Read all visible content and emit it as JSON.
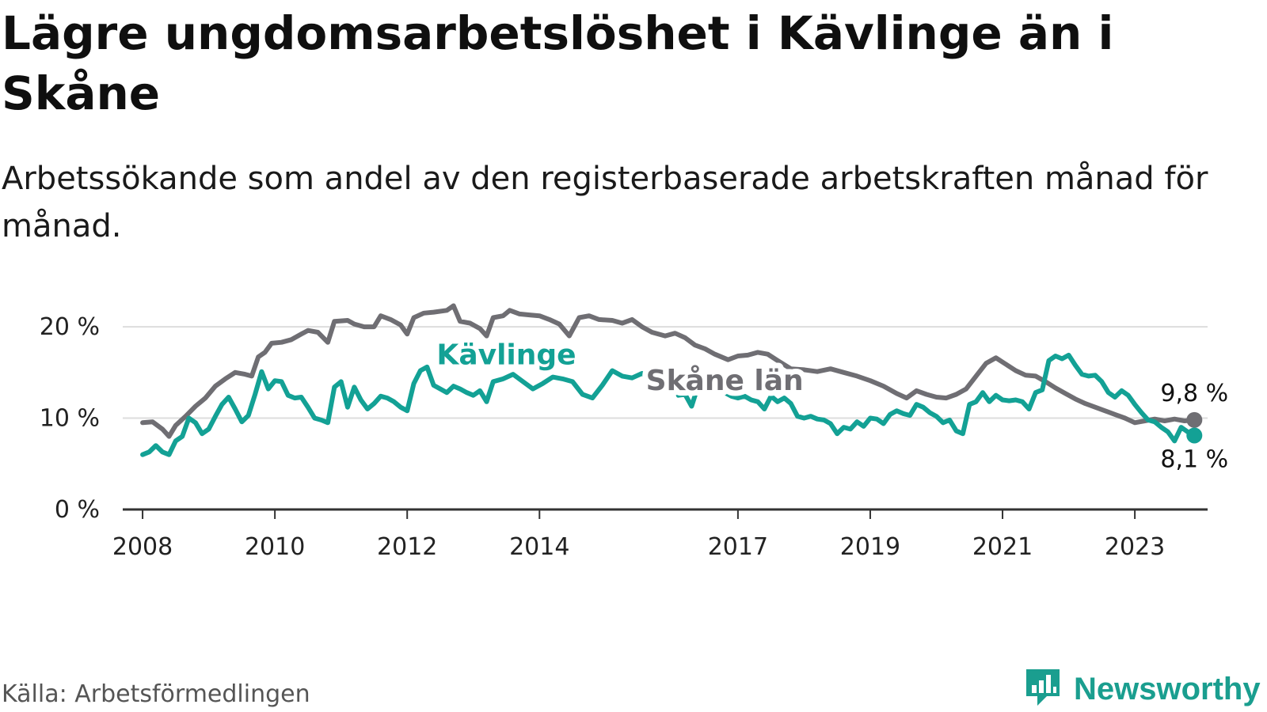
{
  "header": {
    "title": "Lägre ungdomsarbetslöshet i Kävlinge än i Skåne",
    "subtitle": "Arbetssökande som andel av den registerbaserade arbetskraften månad för månad."
  },
  "footer": {
    "source": "Källa: Arbetsförmedlingen",
    "brand": "Newsworthy"
  },
  "colors": {
    "kavlinge": "#13a195",
    "skane": "#6f6e73",
    "grid": "#dddddd",
    "axis": "#333333",
    "brand": "#1a9e8f"
  },
  "icons": {
    "brand_logo": "bar-chart-speech-bubble-icon"
  },
  "chart_data": {
    "type": "line",
    "title": "Lägre ungdomsarbetslöshet i Kävlinge än i Skåne",
    "xlabel": "",
    "ylabel": "",
    "ylim": [
      0,
      22
    ],
    "xlim": [
      2007.7,
      2024.1
    ],
    "yticks": [
      {
        "value": 0,
        "label": "0 %"
      },
      {
        "value": 10,
        "label": "10 %"
      },
      {
        "value": 20,
        "label": "20 %"
      }
    ],
    "xticks": [
      {
        "value": 2008,
        "label": "2008"
      },
      {
        "value": 2010,
        "label": "2010"
      },
      {
        "value": 2012,
        "label": "2012"
      },
      {
        "value": 2014,
        "label": "2014"
      },
      {
        "value": 2017,
        "label": "2017"
      },
      {
        "value": 2019,
        "label": "2019"
      },
      {
        "value": 2021,
        "label": "2021"
      },
      {
        "value": 2023,
        "label": "2023"
      }
    ],
    "grid": true,
    "series": [
      {
        "name": "Skåne län",
        "color": "#6f6e73",
        "label_at": [
          2016.8,
          13.1
        ],
        "end_label": "9,8 %",
        "points": [
          [
            2008.0,
            9.5
          ],
          [
            2008.15,
            9.6
          ],
          [
            2008.3,
            8.8
          ],
          [
            2008.4,
            8.0
          ],
          [
            2008.5,
            9.2
          ],
          [
            2008.65,
            10.2
          ],
          [
            2008.8,
            11.3
          ],
          [
            2008.95,
            12.2
          ],
          [
            2009.1,
            13.5
          ],
          [
            2009.25,
            14.3
          ],
          [
            2009.4,
            15.0
          ],
          [
            2009.55,
            14.8
          ],
          [
            2009.65,
            14.6
          ],
          [
            2009.75,
            16.7
          ],
          [
            2009.85,
            17.2
          ],
          [
            2009.95,
            18.2
          ],
          [
            2010.1,
            18.3
          ],
          [
            2010.25,
            18.6
          ],
          [
            2010.4,
            19.2
          ],
          [
            2010.5,
            19.6
          ],
          [
            2010.65,
            19.4
          ],
          [
            2010.8,
            18.3
          ],
          [
            2010.9,
            20.6
          ],
          [
            2011.1,
            20.7
          ],
          [
            2011.2,
            20.3
          ],
          [
            2011.35,
            20.0
          ],
          [
            2011.5,
            20.0
          ],
          [
            2011.6,
            21.2
          ],
          [
            2011.75,
            20.8
          ],
          [
            2011.9,
            20.2
          ],
          [
            2012.0,
            19.2
          ],
          [
            2012.1,
            21.0
          ],
          [
            2012.25,
            21.5
          ],
          [
            2012.4,
            21.6
          ],
          [
            2012.6,
            21.8
          ],
          [
            2012.7,
            22.3
          ],
          [
            2012.8,
            20.6
          ],
          [
            2012.95,
            20.4
          ],
          [
            2013.1,
            19.8
          ],
          [
            2013.2,
            19.0
          ],
          [
            2013.3,
            21.0
          ],
          [
            2013.45,
            21.2
          ],
          [
            2013.55,
            21.8
          ],
          [
            2013.7,
            21.4
          ],
          [
            2013.85,
            21.3
          ],
          [
            2014.0,
            21.2
          ],
          [
            2014.15,
            20.8
          ],
          [
            2014.3,
            20.3
          ],
          [
            2014.45,
            19.0
          ],
          [
            2014.6,
            21.0
          ],
          [
            2014.75,
            21.2
          ],
          [
            2014.9,
            20.8
          ],
          [
            2015.1,
            20.7
          ],
          [
            2015.25,
            20.4
          ],
          [
            2015.4,
            20.8
          ],
          [
            2015.55,
            20.0
          ],
          [
            2015.7,
            19.4
          ],
          [
            2015.9,
            19.0
          ],
          [
            2016.05,
            19.3
          ],
          [
            2016.2,
            18.8
          ],
          [
            2016.35,
            18.0
          ],
          [
            2016.5,
            17.6
          ],
          [
            2016.65,
            17.0
          ],
          [
            2016.85,
            16.4
          ],
          [
            2017.0,
            16.8
          ],
          [
            2017.15,
            16.9
          ],
          [
            2017.3,
            17.2
          ],
          [
            2017.45,
            17.0
          ],
          [
            2017.6,
            16.3
          ],
          [
            2017.8,
            15.4
          ],
          [
            2018.0,
            15.3
          ],
          [
            2018.2,
            15.1
          ],
          [
            2018.4,
            15.4
          ],
          [
            2018.6,
            15.0
          ],
          [
            2018.8,
            14.6
          ],
          [
            2019.0,
            14.1
          ],
          [
            2019.2,
            13.5
          ],
          [
            2019.4,
            12.7
          ],
          [
            2019.55,
            12.2
          ],
          [
            2019.7,
            13.0
          ],
          [
            2019.85,
            12.6
          ],
          [
            2020.0,
            12.3
          ],
          [
            2020.15,
            12.2
          ],
          [
            2020.3,
            12.6
          ],
          [
            2020.45,
            13.2
          ],
          [
            2020.6,
            14.6
          ],
          [
            2020.75,
            16.0
          ],
          [
            2020.9,
            16.6
          ],
          [
            2021.05,
            15.9
          ],
          [
            2021.2,
            15.2
          ],
          [
            2021.35,
            14.7
          ],
          [
            2021.5,
            14.6
          ],
          [
            2021.65,
            14.0
          ],
          [
            2021.8,
            13.3
          ],
          [
            2021.95,
            12.7
          ],
          [
            2022.1,
            12.1
          ],
          [
            2022.25,
            11.6
          ],
          [
            2022.4,
            11.2
          ],
          [
            2022.55,
            10.8
          ],
          [
            2022.7,
            10.4
          ],
          [
            2022.85,
            10.0
          ],
          [
            2023.0,
            9.5
          ],
          [
            2023.15,
            9.7
          ],
          [
            2023.3,
            9.9
          ],
          [
            2023.45,
            9.7
          ],
          [
            2023.6,
            9.9
          ],
          [
            2023.75,
            9.7
          ],
          [
            2023.9,
            9.8
          ]
        ]
      },
      {
        "name": "Kävlinge",
        "color": "#13a195",
        "label_at": [
          2013.5,
          15.9
        ],
        "end_label": "8,1 %",
        "points": [
          [
            2008.0,
            6.0
          ],
          [
            2008.1,
            6.3
          ],
          [
            2008.2,
            7.0
          ],
          [
            2008.3,
            6.3
          ],
          [
            2008.4,
            6.0
          ],
          [
            2008.5,
            7.5
          ],
          [
            2008.6,
            8.0
          ],
          [
            2008.7,
            10.0
          ],
          [
            2008.8,
            9.5
          ],
          [
            2008.9,
            8.3
          ],
          [
            2009.0,
            8.8
          ],
          [
            2009.1,
            10.2
          ],
          [
            2009.2,
            11.5
          ],
          [
            2009.3,
            12.3
          ],
          [
            2009.4,
            11.0
          ],
          [
            2009.5,
            9.6
          ],
          [
            2009.6,
            10.3
          ],
          [
            2009.7,
            12.6
          ],
          [
            2009.8,
            15.1
          ],
          [
            2009.9,
            13.2
          ],
          [
            2010.0,
            14.1
          ],
          [
            2010.1,
            14.0
          ],
          [
            2010.2,
            12.5
          ],
          [
            2010.3,
            12.2
          ],
          [
            2010.4,
            12.3
          ],
          [
            2010.5,
            11.2
          ],
          [
            2010.6,
            10.0
          ],
          [
            2010.7,
            9.8
          ],
          [
            2010.8,
            9.5
          ],
          [
            2010.9,
            13.4
          ],
          [
            2011.0,
            14.0
          ],
          [
            2011.1,
            11.2
          ],
          [
            2011.2,
            13.4
          ],
          [
            2011.3,
            12.0
          ],
          [
            2011.4,
            11.0
          ],
          [
            2011.5,
            11.6
          ],
          [
            2011.6,
            12.4
          ],
          [
            2011.7,
            12.2
          ],
          [
            2011.8,
            11.8
          ],
          [
            2011.9,
            11.2
          ],
          [
            2012.0,
            10.8
          ],
          [
            2012.1,
            13.8
          ],
          [
            2012.2,
            15.2
          ],
          [
            2012.3,
            15.6
          ],
          [
            2012.4,
            13.6
          ],
          [
            2012.5,
            13.2
          ],
          [
            2012.6,
            12.8
          ],
          [
            2012.7,
            13.5
          ],
          [
            2012.8,
            13.2
          ],
          [
            2012.9,
            12.8
          ],
          [
            2013.0,
            12.5
          ],
          [
            2013.1,
            13.0
          ],
          [
            2013.2,
            11.8
          ],
          [
            2013.3,
            14.0
          ],
          [
            2013.45,
            14.3
          ],
          [
            2013.6,
            14.8
          ],
          [
            2013.75,
            14.0
          ],
          [
            2013.9,
            13.2
          ],
          [
            2014.05,
            13.8
          ],
          [
            2014.2,
            14.5
          ],
          [
            2014.35,
            14.3
          ],
          [
            2014.5,
            14.0
          ],
          [
            2014.65,
            12.6
          ],
          [
            2014.8,
            12.2
          ],
          [
            2014.95,
            13.6
          ],
          [
            2015.1,
            15.2
          ],
          [
            2015.25,
            14.6
          ],
          [
            2015.4,
            14.4
          ],
          [
            2015.55,
            14.9
          ],
          [
            2015.7,
            14.2
          ],
          [
            2015.85,
            15.0
          ],
          [
            2016.0,
            14.4
          ],
          [
            2016.1,
            12.5
          ],
          [
            2016.2,
            12.6
          ],
          [
            2016.3,
            11.3
          ],
          [
            2016.4,
            13.6
          ],
          [
            2016.5,
            13.0
          ],
          [
            2016.6,
            13.8
          ],
          [
            2016.7,
            13.0
          ],
          [
            2016.8,
            12.8
          ],
          [
            2016.9,
            12.4
          ],
          [
            2017.0,
            12.2
          ],
          [
            2017.1,
            12.4
          ],
          [
            2017.2,
            12.0
          ],
          [
            2017.3,
            11.8
          ],
          [
            2017.4,
            11.0
          ],
          [
            2017.5,
            12.4
          ],
          [
            2017.6,
            11.8
          ],
          [
            2017.7,
            12.2
          ],
          [
            2017.8,
            11.6
          ],
          [
            2017.9,
            10.2
          ],
          [
            2018.0,
            10.0
          ],
          [
            2018.1,
            10.2
          ],
          [
            2018.2,
            9.9
          ],
          [
            2018.3,
            9.8
          ],
          [
            2018.4,
            9.4
          ],
          [
            2018.5,
            8.3
          ],
          [
            2018.6,
            9.0
          ],
          [
            2018.7,
            8.8
          ],
          [
            2018.8,
            9.6
          ],
          [
            2018.9,
            9.1
          ],
          [
            2019.0,
            10.0
          ],
          [
            2019.1,
            9.9
          ],
          [
            2019.2,
            9.4
          ],
          [
            2019.3,
            10.4
          ],
          [
            2019.4,
            10.8
          ],
          [
            2019.5,
            10.5
          ],
          [
            2019.6,
            10.3
          ],
          [
            2019.7,
            11.5
          ],
          [
            2019.8,
            11.2
          ],
          [
            2019.9,
            10.6
          ],
          [
            2020.0,
            10.2
          ],
          [
            2020.1,
            9.5
          ],
          [
            2020.2,
            9.8
          ],
          [
            2020.3,
            8.6
          ],
          [
            2020.4,
            8.3
          ],
          [
            2020.5,
            11.5
          ],
          [
            2020.6,
            11.8
          ],
          [
            2020.7,
            12.8
          ],
          [
            2020.8,
            11.8
          ],
          [
            2020.9,
            12.5
          ],
          [
            2021.0,
            12.0
          ],
          [
            2021.1,
            11.9
          ],
          [
            2021.2,
            12.0
          ],
          [
            2021.3,
            11.8
          ],
          [
            2021.4,
            11.0
          ],
          [
            2021.5,
            12.8
          ],
          [
            2021.6,
            13.1
          ],
          [
            2021.7,
            16.3
          ],
          [
            2021.8,
            16.8
          ],
          [
            2021.9,
            16.5
          ],
          [
            2022.0,
            16.9
          ],
          [
            2022.1,
            15.8
          ],
          [
            2022.2,
            14.8
          ],
          [
            2022.3,
            14.6
          ],
          [
            2022.4,
            14.7
          ],
          [
            2022.5,
            14.0
          ],
          [
            2022.6,
            12.8
          ],
          [
            2022.7,
            12.3
          ],
          [
            2022.8,
            13.0
          ],
          [
            2022.9,
            12.5
          ],
          [
            2023.0,
            11.5
          ],
          [
            2023.1,
            10.6
          ],
          [
            2023.2,
            9.8
          ],
          [
            2023.3,
            9.6
          ],
          [
            2023.4,
            9.0
          ],
          [
            2023.5,
            8.5
          ],
          [
            2023.6,
            7.5
          ],
          [
            2023.7,
            9.0
          ],
          [
            2023.8,
            8.5
          ],
          [
            2023.9,
            8.1
          ]
        ]
      }
    ]
  }
}
